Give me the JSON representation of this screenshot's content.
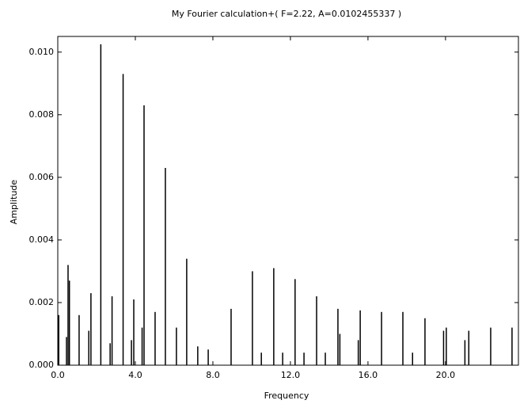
{
  "chart_data": {
    "type": "stem",
    "title": "My Fourier calculation+( F=2.22, A=0.0102455337 )",
    "x_label": "Frequency",
    "y_label": "Amplitude",
    "color": "#000000",
    "x": [
      0.05,
      0.45,
      0.53,
      0.6,
      1.1,
      1.6,
      1.71,
      2.22,
      2.7,
      2.8,
      3.37,
      3.8,
      3.92,
      4.35,
      4.45,
      5.02,
      5.55,
      6.12,
      6.65,
      7.22,
      7.76,
      8.94,
      10.04,
      10.5,
      11.14,
      11.6,
      12.24,
      12.7,
      13.35,
      13.8,
      14.45,
      14.55,
      15.5,
      15.6,
      16.7,
      17.8,
      18.3,
      18.94,
      19.9,
      20.04,
      21.0,
      21.2,
      22.33,
      23.43
    ],
    "values": [
      0.0016,
      0.0009,
      0.0032,
      0.0027,
      0.0016,
      0.0011,
      0.0023,
      0.01025,
      0.0007,
      0.0022,
      0.0093,
      0.0008,
      0.0021,
      0.0012,
      0.0083,
      0.0017,
      0.0063,
      0.0012,
      0.0034,
      0.0006,
      0.0005,
      0.0018,
      0.003,
      0.0004,
      0.0031,
      0.0004,
      0.00275,
      0.0004,
      0.0022,
      0.0004,
      0.0018,
      0.001,
      0.0008,
      0.00175,
      0.0017,
      0.0017,
      0.0004,
      0.0015,
      0.0011,
      0.0012,
      0.0008,
      0.0011,
      0.0012,
      0.0012
    ],
    "xlim": [
      0,
      23.76
    ],
    "ylim": [
      0,
      0.0105
    ],
    "xticks": [
      {
        "value": 0,
        "label": "0.0"
      },
      {
        "value": 4,
        "label": "4.0"
      },
      {
        "value": 8,
        "label": "8.0"
      },
      {
        "value": 12,
        "label": "12.0"
      },
      {
        "value": 16,
        "label": "16.0"
      },
      {
        "value": 20,
        "label": "20.0"
      }
    ],
    "yticks": [
      {
        "value": 0,
        "label": "0.000"
      },
      {
        "value": 0.002,
        "label": "0.002"
      },
      {
        "value": 0.004,
        "label": "0.004"
      },
      {
        "value": 0.006,
        "label": "0.006"
      },
      {
        "value": 0.008,
        "label": "0.008"
      },
      {
        "value": 0.01,
        "label": "0.010"
      }
    ]
  }
}
